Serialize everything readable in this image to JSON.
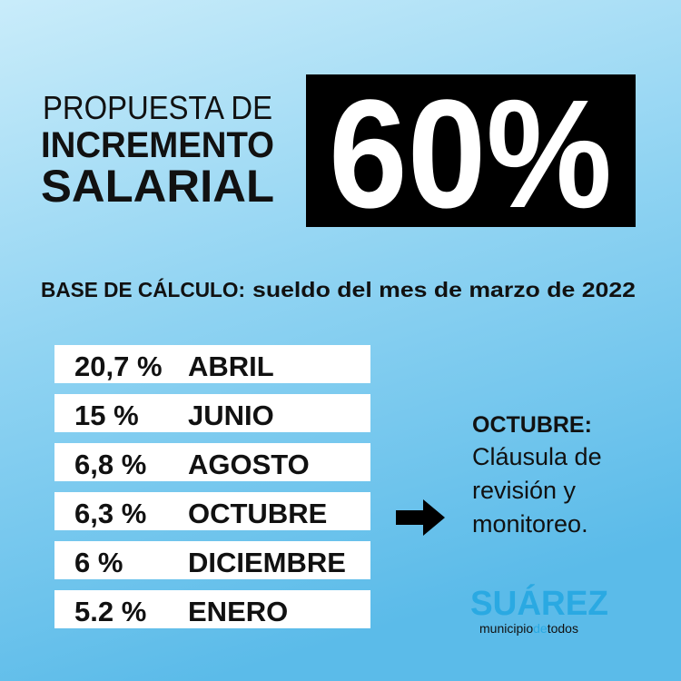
{
  "header": {
    "lines": [
      "PROPUESTA DE",
      "INCREMENTO",
      "SALARIAL"
    ],
    "highlight": "60%"
  },
  "base": {
    "label": "BASE DE CÁLCULO:",
    "text": "sueldo del mes de marzo de 2022"
  },
  "table": {
    "rows": [
      [
        "20,7 %",
        "ABRIL"
      ],
      [
        "15 %",
        "JUNIO"
      ],
      [
        "6,8 %",
        "AGOSTO"
      ],
      [
        "6,3 %",
        "OCTUBRE"
      ],
      [
        "6 %",
        "DICIEMBRE"
      ],
      [
        "5.2 %",
        "ENERO"
      ]
    ]
  },
  "note": {
    "title": "OCTUBRE:",
    "lines": [
      "Cláusula de",
      "revisión y",
      "monitoreo."
    ]
  },
  "logo": {
    "name": "SUÁREZ",
    "tagline": [
      "municipio",
      "de",
      "todos"
    ]
  }
}
